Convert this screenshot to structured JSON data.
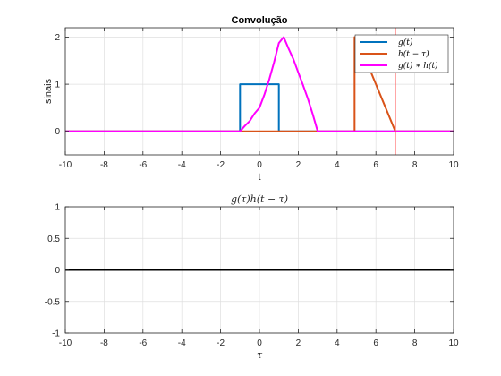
{
  "chart_data": [
    {
      "type": "line",
      "title": "Convolução",
      "xlabel": "t",
      "ylabel": "sinais",
      "xlim": [
        -10,
        10
      ],
      "ylim": [
        -0.5,
        2.2
      ],
      "xticks": [
        -10,
        -8,
        -6,
        -4,
        -2,
        0,
        2,
        4,
        6,
        8,
        10
      ],
      "yticks": [
        0,
        1,
        2
      ],
      "xtick_labels": [
        "-10",
        "-8",
        "-6",
        "-4",
        "-2",
        "0",
        "2",
        "4",
        "6",
        "8",
        "10"
      ],
      "ytick_labels": [
        "0",
        "1",
        "2"
      ],
      "grid": true,
      "legend_position": "top-right",
      "series": [
        {
          "name": "g(t)",
          "color": "#0072BD",
          "x": [
            -10,
            -1,
            -1,
            1,
            1,
            10
          ],
          "y": [
            0,
            0,
            1,
            1,
            0,
            0
          ]
        },
        {
          "name": "h(t − τ)",
          "color": "#D95319",
          "x": [
            -10,
            4.9,
            4.9,
            5,
            7,
            10
          ],
          "y": [
            0,
            0,
            2,
            2,
            0,
            0
          ]
        },
        {
          "name": "g(t) ∗ h(t)",
          "color": "#FF00FF",
          "x": [
            -10,
            -1,
            -0.75,
            -0.5,
            -0.25,
            0,
            0.25,
            0.5,
            0.75,
            1,
            1.25,
            1.5,
            1.75,
            2,
            2.25,
            2.5,
            2.75,
            3,
            10
          ],
          "y": [
            0,
            0,
            0.1172,
            0.2188,
            0.3797,
            0.5,
            0.7734,
            1.0938,
            1.4609,
            1.875,
            2.0,
            1.7578,
            1.5313,
            1.25,
            0.9766,
            0.6875,
            0.3594,
            0,
            0
          ]
        }
      ],
      "vertical_line": {
        "x": 7,
        "color": "#FF4D4D"
      }
    },
    {
      "type": "line",
      "title": "g(τ)h(t − τ)",
      "xlabel": "τ",
      "ylabel": "",
      "xlim": [
        -10,
        10
      ],
      "ylim": [
        -1,
        1
      ],
      "xticks": [
        -10,
        -8,
        -6,
        -4,
        -2,
        0,
        2,
        4,
        6,
        8,
        10
      ],
      "yticks": [
        -1,
        -0.5,
        0,
        0.5,
        1
      ],
      "xtick_labels": [
        "-10",
        "-8",
        "-6",
        "-4",
        "-2",
        "0",
        "2",
        "4",
        "6",
        "8",
        "10"
      ],
      "ytick_labels": [
        "-1",
        "-0.5",
        "0",
        "0.5",
        "1"
      ],
      "grid": true,
      "series": [
        {
          "color": "#000000",
          "x": [
            -10,
            10
          ],
          "y": [
            0,
            0
          ]
        }
      ]
    }
  ]
}
